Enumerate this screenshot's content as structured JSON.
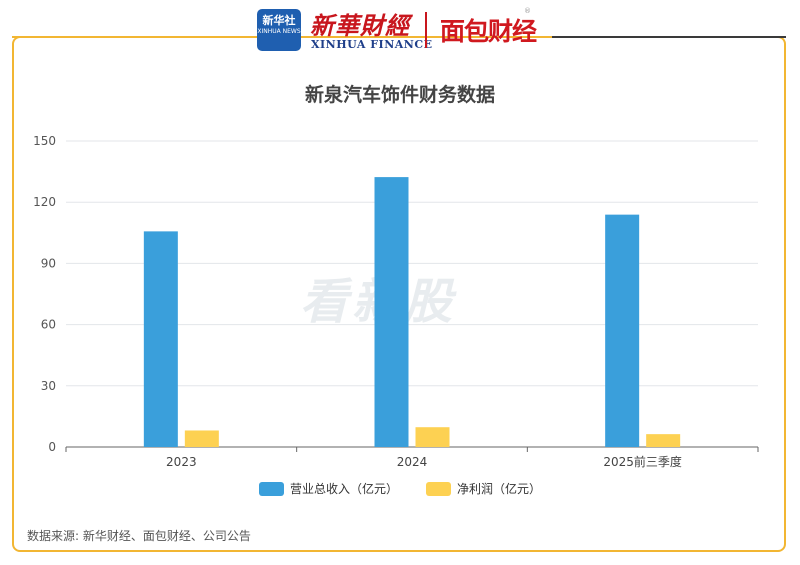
{
  "header": {
    "xinhua_badge_line1": "新华社",
    "xinhua_badge_line2": "XINHUA NEWS",
    "xinhua_title": "新華財經",
    "xinhua_subtitle": "XINHUA FINANCE",
    "partner_logo": "面包财经",
    "colors": {
      "frame": "#f2b632",
      "xinhua_red": "#c8161d",
      "xinhua_blue": "#1f5fb0"
    }
  },
  "watermark": "看新股",
  "source": "数据来源: 新华财经、面包财经、公司公告",
  "chart_data": {
    "type": "bar",
    "title": "新泉汽车饰件财务数据",
    "categories": [
      "2023",
      "2024",
      "2025前三季度"
    ],
    "series": [
      {
        "name": "营业总收入（亿元）",
        "values": [
          105.7,
          132.3,
          113.9
        ],
        "color": "#3a9fdb"
      },
      {
        "name": "净利润（亿元）",
        "values": [
          8.1,
          9.7,
          6.3
        ],
        "color": "#fdd152"
      }
    ],
    "ylim": [
      0,
      150
    ],
    "yticks": [
      0,
      30,
      60,
      90,
      120,
      150
    ],
    "grid": true,
    "legend_position": "bottom"
  }
}
